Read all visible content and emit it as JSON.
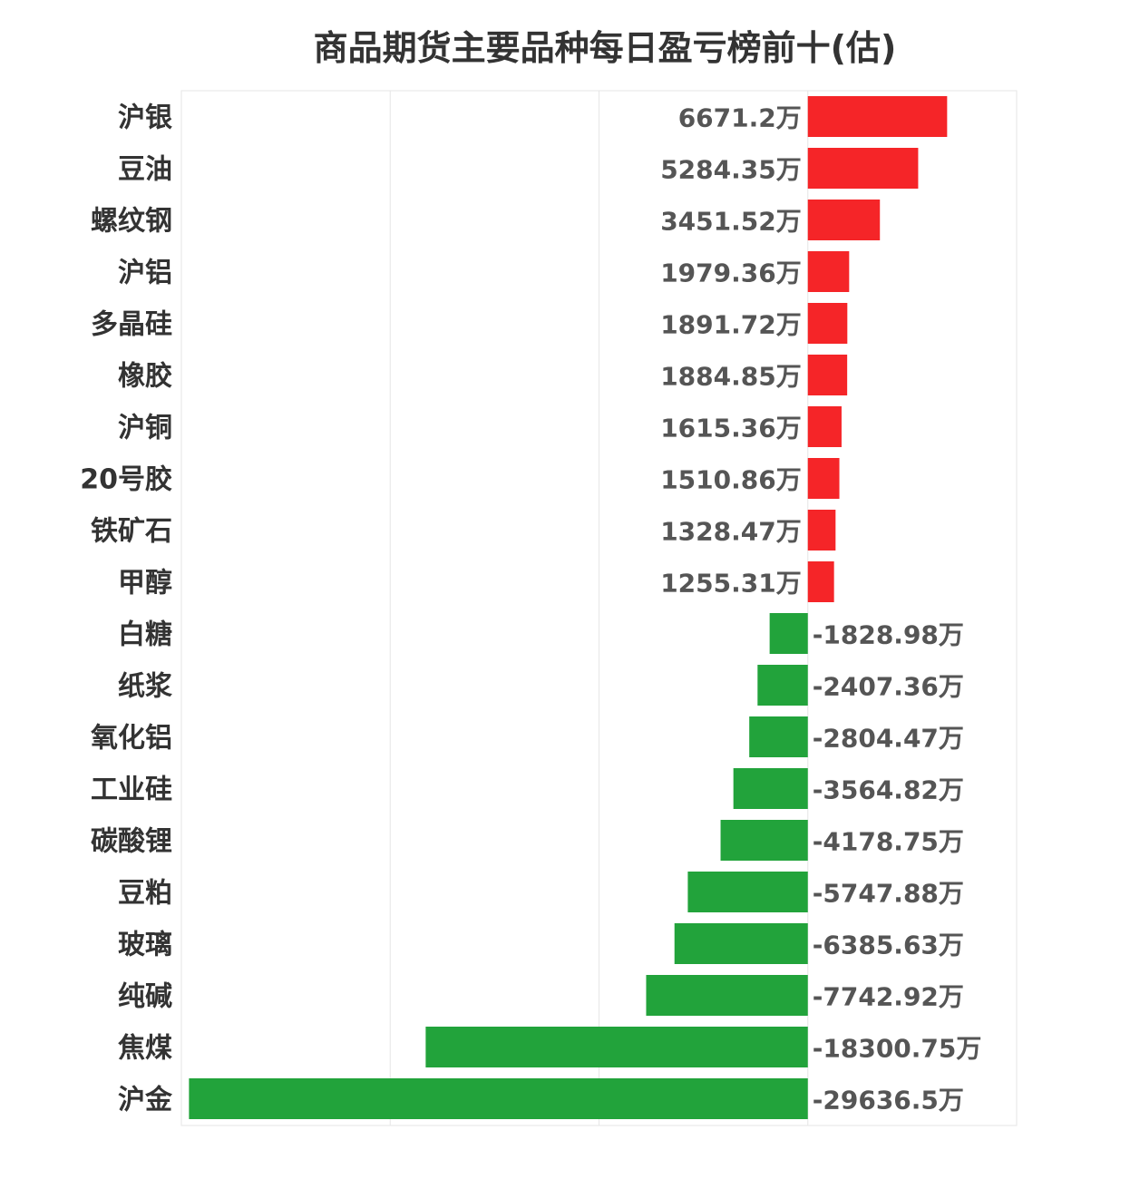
{
  "chart_data": {
    "type": "bar",
    "orientation": "horizontal",
    "title": "商品期货主要品种每日盈亏榜前十(估)",
    "unit": "万",
    "categories": [
      "沪银",
      "豆油",
      "螺纹钢",
      "沪铝",
      "多晶硅",
      "橡胶",
      "沪铜",
      "20号胶",
      "铁矿石",
      "甲醇",
      "白糖",
      "纸浆",
      "氧化铝",
      "工业硅",
      "碳酸锂",
      "豆粕",
      "玻璃",
      "纯碱",
      "焦煤",
      "沪金"
    ],
    "values": [
      6671.2,
      5284.35,
      3451.52,
      1979.36,
      1891.72,
      1884.85,
      1615.36,
      1510.86,
      1328.47,
      1255.31,
      -1828.98,
      -2407.36,
      -2804.47,
      -3564.82,
      -4178.75,
      -5747.88,
      -6385.63,
      -7742.92,
      -18300.75,
      -29636.5
    ],
    "value_labels": [
      "6671.2万",
      "5284.35万",
      "3451.52万",
      "1979.36万",
      "1891.72万",
      "1884.85万",
      "1615.36万",
      "1510.86万",
      "1328.47万",
      "1255.31万",
      "-1828.98万",
      "-2407.36万",
      "-2804.47万",
      "-3564.82万",
      "-4178.75万",
      "-5747.88万",
      "-6385.63万",
      "-7742.92万",
      "-18300.75万",
      "-29636.5万"
    ],
    "xlim": [
      -30000,
      10000
    ],
    "grid": true,
    "colors": {
      "positive": "#f52528",
      "negative": "#22a33b"
    }
  }
}
